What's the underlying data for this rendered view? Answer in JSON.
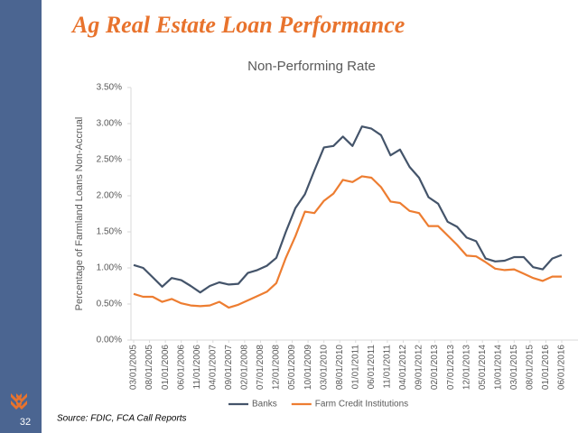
{
  "slide_title": "Ag Real Estate Loan Performance",
  "page_number": "32",
  "source": "Source: FDIC, FCA Call Reports",
  "chart_data": {
    "type": "line",
    "title": "Non-Performing Rate",
    "y_label": "Percentage of Farmland Loans Non-Accrual",
    "x": [
      "03/01/2005",
      "06/01/2005",
      "09/01/2005",
      "12/01/2005",
      "03/01/2006",
      "06/01/2006",
      "09/01/2006",
      "12/01/2006",
      "03/01/2007",
      "06/01/2007",
      "09/01/2007",
      "12/01/2007",
      "03/01/2008",
      "06/01/2008",
      "09/01/2008",
      "12/01/2008",
      "03/01/2009",
      "06/01/2009",
      "09/01/2009",
      "12/01/2009",
      "03/01/2010",
      "06/01/2010",
      "09/01/2010",
      "12/01/2010",
      "03/01/2011",
      "06/01/2011",
      "09/01/2011",
      "12/01/2011",
      "03/01/2012",
      "06/01/2012",
      "09/01/2012",
      "12/01/2012",
      "03/01/2013",
      "06/01/2013",
      "09/01/2013",
      "12/01/2013",
      "03/01/2014",
      "06/01/2014",
      "09/01/2014",
      "12/01/2014",
      "03/01/2015",
      "06/01/2015",
      "09/01/2015",
      "12/01/2015",
      "03/01/2016",
      "06/01/2016"
    ],
    "xlim": [
      "03/01/2005",
      "06/01/2016"
    ],
    "xticks": [
      "03/01/2005",
      "08/01/2005",
      "01/01/2006",
      "06/01/2006",
      "11/01/2006",
      "04/01/2007",
      "09/01/2007",
      "02/01/2008",
      "07/01/2008",
      "12/01/2008",
      "05/01/2009",
      "10/01/2009",
      "03/01/2010",
      "08/01/2010",
      "01/01/2011",
      "06/01/2011",
      "11/01/2011",
      "04/01/2012",
      "09/01/2012",
      "02/01/2013",
      "07/01/2013",
      "12/01/2013",
      "05/01/2014",
      "10/01/2014",
      "03/01/2015",
      "08/01/2015",
      "01/01/2016",
      "06/01/2016"
    ],
    "ylim": [
      0,
      3.5
    ],
    "yticks": [
      {
        "value": 0,
        "label": "0.00%"
      },
      {
        "value": 0.5,
        "label": "0.50%"
      },
      {
        "value": 1,
        "label": "1.00%"
      },
      {
        "value": 1.5,
        "label": "1.50%"
      },
      {
        "value": 2,
        "label": "2.00%"
      },
      {
        "value": 2.5,
        "label": "2.50%"
      },
      {
        "value": 3,
        "label": "3.00%"
      },
      {
        "value": 3.5,
        "label": "3.50%"
      }
    ],
    "legend": "bottom",
    "series": [
      {
        "name": "Banks",
        "color": "#44546a",
        "values": [
          1.04,
          1.0,
          0.87,
          0.74,
          0.86,
          0.83,
          0.75,
          0.66,
          0.75,
          0.8,
          0.77,
          0.78,
          0.93,
          0.97,
          1.03,
          1.14,
          1.5,
          1.83,
          2.02,
          2.35,
          2.67,
          2.69,
          2.82,
          2.69,
          2.96,
          2.93,
          2.84,
          2.56,
          2.64,
          2.4,
          2.25,
          1.98,
          1.89,
          1.64,
          1.57,
          1.42,
          1.37,
          1.13,
          1.09,
          1.1,
          1.15,
          1.15,
          1.01,
          0.98,
          1.13,
          1.18
        ]
      },
      {
        "name": "Farm Credit Institutions",
        "color": "#ed7d31",
        "values": [
          0.64,
          0.6,
          0.6,
          0.53,
          0.57,
          0.51,
          0.48,
          0.47,
          0.48,
          0.53,
          0.45,
          0.49,
          0.55,
          0.61,
          0.67,
          0.79,
          1.14,
          1.44,
          1.78,
          1.76,
          1.93,
          2.03,
          2.22,
          2.19,
          2.27,
          2.25,
          2.12,
          1.92,
          1.9,
          1.79,
          1.76,
          1.58,
          1.58,
          1.45,
          1.32,
          1.17,
          1.16,
          1.08,
          0.99,
          0.97,
          0.98,
          0.92,
          0.86,
          0.82,
          0.88,
          0.88
        ]
      }
    ]
  }
}
